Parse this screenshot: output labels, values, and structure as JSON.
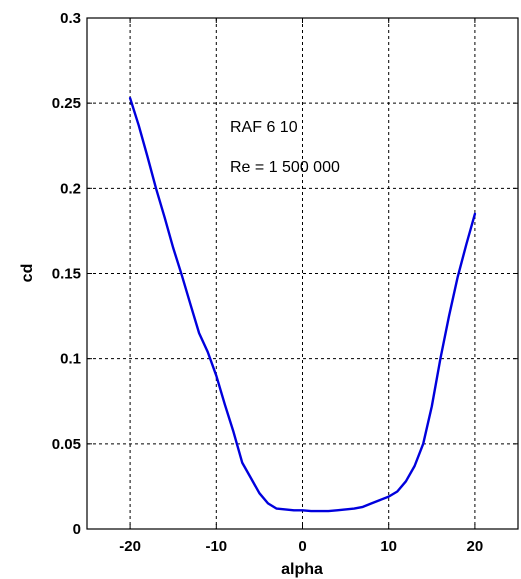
{
  "chart_data": {
    "type": "line",
    "xlabel": "alpha",
    "ylabel": "cd",
    "xlim": [
      -25,
      25
    ],
    "ylim": [
      0,
      0.3
    ],
    "x_ticks": [
      -20,
      -10,
      0,
      10,
      20
    ],
    "y_ticks": [
      0,
      0.05,
      0.1,
      0.15,
      0.2,
      0.25,
      0.3
    ],
    "x_tick_labels": [
      "-20",
      "-10",
      "0",
      "10",
      "20"
    ],
    "y_tick_labels": [
      "0",
      "0.05",
      "0.1",
      "0.15",
      "0.2",
      "0.25",
      "0.3"
    ],
    "grid": true,
    "annotations": [
      "RAF 6 10",
      "Re = 1 500 000"
    ],
    "series": [
      {
        "color": "#0000dd",
        "x": [
          -20,
          -19,
          -18,
          -17,
          -16,
          -15,
          -14,
          -13,
          -12,
          -11,
          -10,
          -9,
          -8,
          -7,
          -6,
          -5,
          -4,
          -3,
          -2,
          -1,
          0,
          1,
          2,
          3,
          4,
          5,
          6,
          7,
          8,
          9,
          10,
          11,
          12,
          13,
          14,
          15,
          16,
          17,
          18,
          19,
          20
        ],
        "y": [
          0.253,
          0.237,
          0.219,
          0.2,
          0.183,
          0.165,
          0.149,
          0.132,
          0.115,
          0.104,
          0.09,
          0.073,
          0.057,
          0.039,
          0.03,
          0.021,
          0.015,
          0.012,
          0.0115,
          0.011,
          0.011,
          0.0105,
          0.0105,
          0.0105,
          0.011,
          0.0115,
          0.012,
          0.013,
          0.015,
          0.017,
          0.019,
          0.022,
          0.028,
          0.037,
          0.05,
          0.072,
          0.1,
          0.125,
          0.148,
          0.167,
          0.185
        ]
      }
    ]
  }
}
